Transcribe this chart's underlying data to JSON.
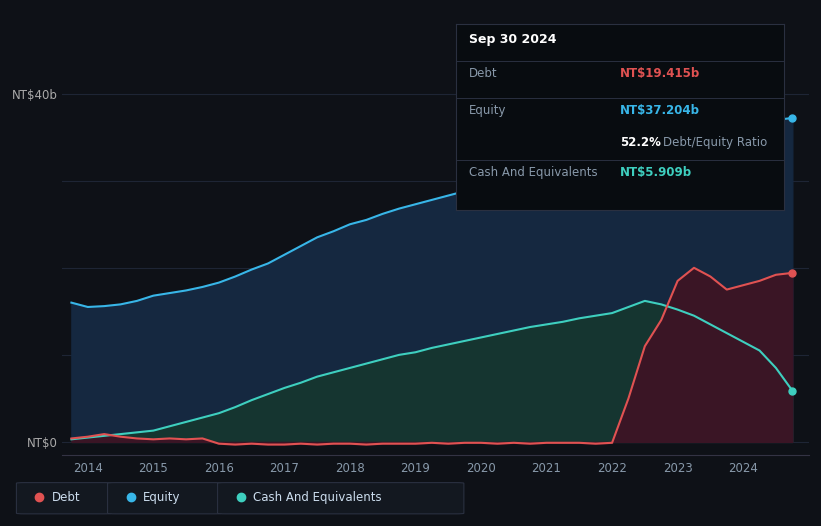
{
  "background_color": "#0e1117",
  "plot_bg_color": "#0e1117",
  "tooltip": {
    "date": "Sep 30 2024",
    "debt_label": "Debt",
    "debt_value": "NT$19.415b",
    "equity_label": "Equity",
    "equity_value": "NT$37.204b",
    "ratio_value": "52.2%",
    "ratio_label": "Debt/Equity Ratio",
    "cash_label": "Cash And Equivalents",
    "cash_value": "NT$5.909b"
  },
  "ylabel_top": "NT$40b",
  "ylabel_bottom": "NT$0",
  "debt_color": "#e05252",
  "equity_color": "#38b6e8",
  "cash_color": "#3ecfbf",
  "equity_fill_color": "#152840",
  "cash_fill_color": "#153530",
  "debt_fill_color": "#3a1525",
  "years": [
    2013.75,
    2014.0,
    2014.25,
    2014.5,
    2014.75,
    2015.0,
    2015.25,
    2015.5,
    2015.75,
    2016.0,
    2016.25,
    2016.5,
    2016.75,
    2017.0,
    2017.25,
    2017.5,
    2017.75,
    2018.0,
    2018.25,
    2018.5,
    2018.75,
    2019.0,
    2019.25,
    2019.5,
    2019.75,
    2020.0,
    2020.25,
    2020.5,
    2020.75,
    2021.0,
    2021.25,
    2021.5,
    2021.75,
    2022.0,
    2022.25,
    2022.5,
    2022.75,
    2023.0,
    2023.25,
    2023.5,
    2023.75,
    2024.0,
    2024.25,
    2024.5,
    2024.75
  ],
  "equity": [
    16.0,
    15.5,
    15.6,
    15.8,
    16.2,
    16.8,
    17.1,
    17.4,
    17.8,
    18.3,
    19.0,
    19.8,
    20.5,
    21.5,
    22.5,
    23.5,
    24.2,
    25.0,
    25.5,
    26.2,
    26.8,
    27.3,
    27.8,
    28.3,
    28.8,
    29.3,
    29.8,
    30.3,
    30.8,
    31.2,
    31.6,
    32.0,
    32.3,
    38.5,
    39.2,
    38.5,
    37.5,
    36.0,
    34.0,
    34.5,
    35.5,
    36.5,
    36.8,
    37.0,
    37.2
  ],
  "cash": [
    0.3,
    0.5,
    0.7,
    0.9,
    1.1,
    1.3,
    1.8,
    2.3,
    2.8,
    3.3,
    4.0,
    4.8,
    5.5,
    6.2,
    6.8,
    7.5,
    8.0,
    8.5,
    9.0,
    9.5,
    10.0,
    10.3,
    10.8,
    11.2,
    11.6,
    12.0,
    12.4,
    12.8,
    13.2,
    13.5,
    13.8,
    14.2,
    14.5,
    14.8,
    15.5,
    16.2,
    15.8,
    15.2,
    14.5,
    13.5,
    12.5,
    11.5,
    10.5,
    8.5,
    5.9
  ],
  "debt": [
    0.4,
    0.6,
    0.9,
    0.6,
    0.4,
    0.3,
    0.4,
    0.3,
    0.4,
    -0.2,
    -0.3,
    -0.2,
    -0.3,
    -0.3,
    -0.2,
    -0.3,
    -0.2,
    -0.2,
    -0.3,
    -0.2,
    -0.2,
    -0.2,
    -0.1,
    -0.2,
    -0.1,
    -0.1,
    -0.2,
    -0.1,
    -0.2,
    -0.1,
    -0.1,
    -0.1,
    -0.2,
    -0.1,
    5.0,
    11.0,
    14.0,
    18.5,
    20.0,
    19.0,
    17.5,
    18.0,
    18.5,
    19.2,
    19.415
  ],
  "ylim": [
    -1.5,
    42
  ],
  "xlim": [
    2013.6,
    2025.0
  ],
  "ytick_labels": [
    "NT$0",
    "NT$40b"
  ],
  "ytick_vals": [
    0,
    40
  ],
  "xtick_vals": [
    2014,
    2015,
    2016,
    2017,
    2018,
    2019,
    2020,
    2021,
    2022,
    2023,
    2024
  ],
  "grid_vals": [
    0,
    10,
    20,
    30,
    40
  ]
}
